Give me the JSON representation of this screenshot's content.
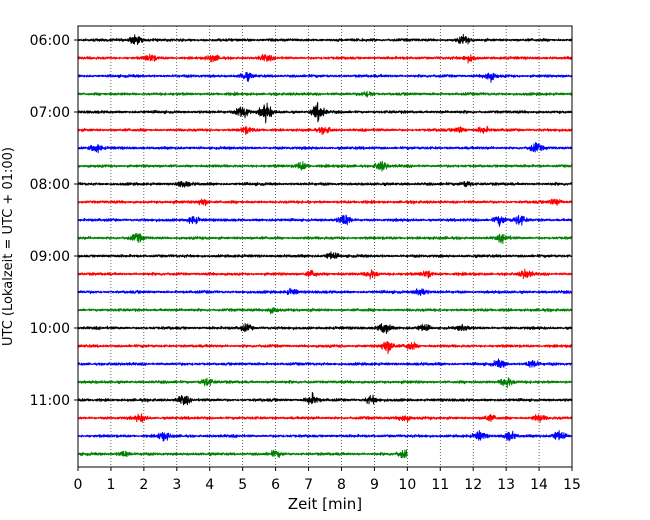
{
  "chart_data": {
    "type": "line",
    "title": "",
    "xlabel": "Zeit  [min]",
    "ylabel": "UTC (Lokalzeit = UTC + 01:00)",
    "xlim": [
      0,
      15
    ],
    "x_ticks": [
      "0",
      "1",
      "2",
      "3",
      "4",
      "5",
      "6",
      "7",
      "8",
      "9",
      "10",
      "11",
      "12",
      "13",
      "14",
      "15"
    ],
    "y_ticks": [
      {
        "label": "06:00",
        "row": 0
      },
      {
        "label": "07:00",
        "row": 4
      },
      {
        "label": "08:00",
        "row": 8
      },
      {
        "label": "09:00",
        "row": 12
      },
      {
        "label": "10:00",
        "row": 16
      },
      {
        "label": "11:00",
        "row": 20
      }
    ],
    "grid": "vertical-dotted",
    "trace_interval_minutes": 15,
    "colors": [
      "#000000",
      "#ff0000",
      "#0000ff",
      "#008000"
    ],
    "traces": [
      {
        "start": "06:00",
        "end_min": 15,
        "color": "#000000",
        "events": [
          [
            1.75,
            1.0
          ],
          [
            11.7,
            0.8
          ]
        ]
      },
      {
        "start": "06:15",
        "end_min": 15,
        "color": "#ff0000",
        "events": [
          [
            2.2,
            0.7
          ],
          [
            4.1,
            0.6
          ],
          [
            5.7,
            0.6
          ],
          [
            11.9,
            0.7
          ]
        ]
      },
      {
        "start": "06:30",
        "end_min": 15,
        "color": "#0000ff",
        "events": [
          [
            5.1,
            0.8
          ],
          [
            12.5,
            1.0
          ]
        ]
      },
      {
        "start": "06:45",
        "end_min": 15,
        "color": "#008000",
        "events": [
          [
            8.8,
            0.6
          ]
        ]
      },
      {
        "start": "07:00",
        "end_min": 15,
        "color": "#000000",
        "events": [
          [
            5.0,
            1.6
          ],
          [
            5.7,
            1.8
          ],
          [
            7.3,
            1.9
          ]
        ]
      },
      {
        "start": "07:15",
        "end_min": 15,
        "color": "#ff0000",
        "events": [
          [
            5.1,
            0.7
          ],
          [
            7.5,
            0.6
          ],
          [
            11.6,
            0.6
          ],
          [
            12.3,
            0.6
          ]
        ]
      },
      {
        "start": "07:30",
        "end_min": 15,
        "color": "#0000ff",
        "events": [
          [
            0.55,
            0.8
          ],
          [
            13.9,
            0.9
          ]
        ]
      },
      {
        "start": "07:45",
        "end_min": 15,
        "color": "#008000",
        "events": [
          [
            6.8,
            0.8
          ],
          [
            9.2,
            1.0
          ]
        ]
      },
      {
        "start": "08:00",
        "end_min": 15,
        "color": "#000000",
        "events": [
          [
            3.2,
            0.6
          ],
          [
            11.8,
            0.6
          ]
        ]
      },
      {
        "start": "08:15",
        "end_min": 15,
        "color": "#ff0000",
        "events": [
          [
            3.8,
            0.7
          ],
          [
            14.5,
            0.7
          ]
        ]
      },
      {
        "start": "08:30",
        "end_min": 15,
        "color": "#0000ff",
        "events": [
          [
            3.5,
            0.8
          ],
          [
            8.1,
            1.2
          ],
          [
            12.8,
            1.0
          ],
          [
            13.4,
            1.0
          ]
        ]
      },
      {
        "start": "08:45",
        "end_min": 15,
        "color": "#008000",
        "events": [
          [
            1.8,
            0.8
          ],
          [
            12.9,
            0.7
          ]
        ]
      },
      {
        "start": "09:00",
        "end_min": 15,
        "color": "#000000",
        "events": [
          [
            7.7,
            0.8
          ]
        ]
      },
      {
        "start": "09:15",
        "end_min": 15,
        "color": "#ff0000",
        "events": [
          [
            7.1,
            0.7
          ],
          [
            8.9,
            0.9
          ],
          [
            10.6,
            0.7
          ],
          [
            13.6,
            0.9
          ]
        ]
      },
      {
        "start": "09:30",
        "end_min": 15,
        "color": "#0000ff",
        "events": [
          [
            6.5,
            0.6
          ],
          [
            10.4,
            0.9
          ]
        ]
      },
      {
        "start": "09:45",
        "end_min": 15,
        "color": "#008000",
        "events": [
          [
            5.9,
            0.6
          ]
        ]
      },
      {
        "start": "10:00",
        "end_min": 15,
        "color": "#000000",
        "events": [
          [
            5.1,
            0.7
          ],
          [
            9.3,
            1.2
          ],
          [
            10.5,
            0.7
          ],
          [
            11.7,
            0.6
          ]
        ]
      },
      {
        "start": "10:15",
        "end_min": 15,
        "color": "#ff0000",
        "events": [
          [
            9.4,
            1.4
          ],
          [
            10.1,
            0.8
          ]
        ]
      },
      {
        "start": "10:30",
        "end_min": 15,
        "color": "#0000ff",
        "events": [
          [
            12.8,
            0.8
          ],
          [
            13.8,
            0.8
          ]
        ]
      },
      {
        "start": "10:45",
        "end_min": 15,
        "color": "#008000",
        "events": [
          [
            3.9,
            0.8
          ],
          [
            13.0,
            1.1
          ]
        ]
      },
      {
        "start": "11:00",
        "end_min": 15,
        "color": "#000000",
        "events": [
          [
            3.2,
            1.0
          ],
          [
            7.1,
            1.1
          ],
          [
            8.9,
            0.8
          ]
        ]
      },
      {
        "start": "11:15",
        "end_min": 15,
        "color": "#ff0000",
        "events": [
          [
            1.9,
            0.7
          ],
          [
            9.9,
            0.8
          ],
          [
            12.5,
            0.6
          ],
          [
            14.0,
            0.7
          ]
        ]
      },
      {
        "start": "11:30",
        "end_min": 15,
        "color": "#0000ff",
        "events": [
          [
            2.6,
            0.8
          ],
          [
            12.2,
            0.9
          ],
          [
            13.1,
            0.9
          ],
          [
            14.6,
            1.1
          ]
        ]
      },
      {
        "start": "11:45",
        "end_min": 10,
        "color": "#008000",
        "events": [
          [
            1.4,
            0.6
          ],
          [
            6.0,
            0.6
          ],
          [
            9.9,
            0.8
          ]
        ]
      }
    ]
  }
}
